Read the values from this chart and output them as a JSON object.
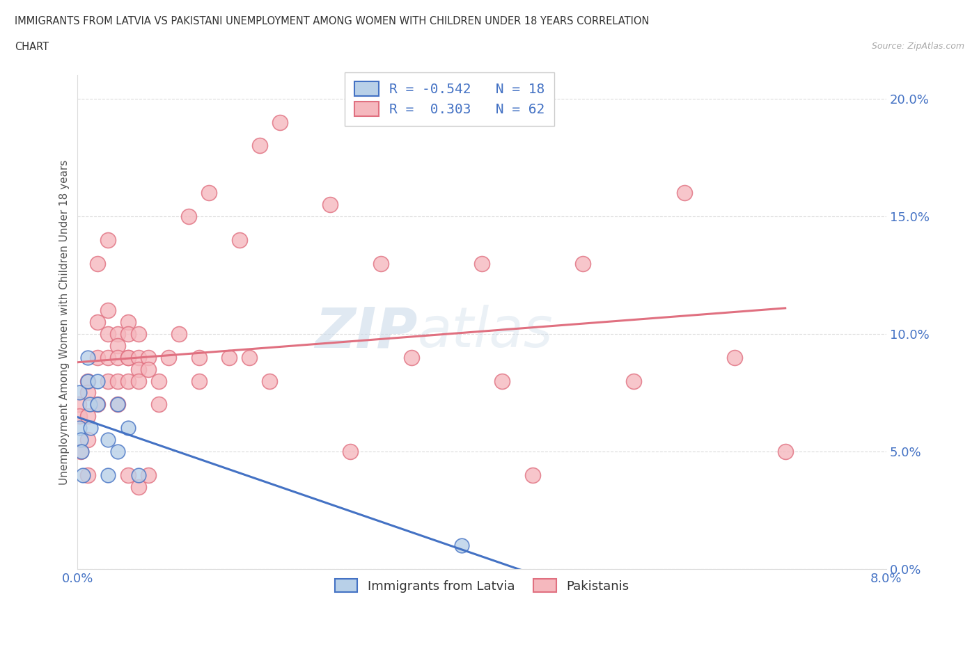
{
  "title_line1": "IMMIGRANTS FROM LATVIA VS PAKISTANI UNEMPLOYMENT AMONG WOMEN WITH CHILDREN UNDER 18 YEARS CORRELATION",
  "title_line2": "CHART",
  "source": "Source: ZipAtlas.com",
  "ylabel": "Unemployment Among Women with Children Under 18 years",
  "xlim": [
    0.0,
    0.08
  ],
  "ylim": [
    0.0,
    0.21
  ],
  "xticks": [
    0.0,
    0.01,
    0.02,
    0.03,
    0.04,
    0.05,
    0.06,
    0.07,
    0.08
  ],
  "yticks": [
    0.0,
    0.05,
    0.1,
    0.15,
    0.2
  ],
  "ytick_labels": [
    "0.0%",
    "5.0%",
    "10.0%",
    "15.0%",
    "20.0%"
  ],
  "xtick_labels": [
    "0.0%",
    "",
    "",
    "",
    "",
    "",
    "",
    "",
    "8.0%"
  ],
  "latvia_R": -0.542,
  "latvia_N": 18,
  "pakistani_R": 0.303,
  "pakistani_N": 62,
  "latvia_color": "#b8d0e8",
  "pakistani_color": "#f5b8be",
  "trend_latvia_color": "#4472c4",
  "trend_pakistani_color": "#e07080",
  "watermark_zip": "ZIP",
  "watermark_atlas": "atlas",
  "latvia_x": [
    0.0002,
    0.0002,
    0.0003,
    0.0004,
    0.0005,
    0.001,
    0.001,
    0.0012,
    0.0013,
    0.002,
    0.002,
    0.003,
    0.003,
    0.004,
    0.004,
    0.005,
    0.006,
    0.038
  ],
  "latvia_y": [
    0.075,
    0.06,
    0.055,
    0.05,
    0.04,
    0.09,
    0.08,
    0.07,
    0.06,
    0.08,
    0.07,
    0.055,
    0.04,
    0.07,
    0.05,
    0.06,
    0.04,
    0.01
  ],
  "pakistani_x": [
    0.0001,
    0.0002,
    0.0003,
    0.001,
    0.001,
    0.001,
    0.001,
    0.001,
    0.002,
    0.002,
    0.002,
    0.002,
    0.003,
    0.003,
    0.003,
    0.003,
    0.003,
    0.004,
    0.004,
    0.004,
    0.004,
    0.004,
    0.005,
    0.005,
    0.005,
    0.005,
    0.005,
    0.005,
    0.006,
    0.006,
    0.006,
    0.006,
    0.006,
    0.007,
    0.007,
    0.007,
    0.008,
    0.008,
    0.009,
    0.01,
    0.011,
    0.012,
    0.012,
    0.013,
    0.015,
    0.016,
    0.017,
    0.018,
    0.019,
    0.02,
    0.025,
    0.027,
    0.03,
    0.033,
    0.04,
    0.042,
    0.045,
    0.05,
    0.055,
    0.06,
    0.065,
    0.07
  ],
  "pakistani_y": [
    0.07,
    0.065,
    0.05,
    0.08,
    0.075,
    0.065,
    0.055,
    0.04,
    0.13,
    0.105,
    0.09,
    0.07,
    0.14,
    0.11,
    0.1,
    0.09,
    0.08,
    0.1,
    0.095,
    0.09,
    0.08,
    0.07,
    0.105,
    0.1,
    0.09,
    0.09,
    0.08,
    0.04,
    0.1,
    0.09,
    0.085,
    0.08,
    0.035,
    0.09,
    0.085,
    0.04,
    0.08,
    0.07,
    0.09,
    0.1,
    0.15,
    0.09,
    0.08,
    0.16,
    0.09,
    0.14,
    0.09,
    0.18,
    0.08,
    0.19,
    0.155,
    0.05,
    0.13,
    0.09,
    0.13,
    0.08,
    0.04,
    0.13,
    0.08,
    0.16,
    0.09,
    0.05
  ],
  "legend_top_labels": [
    "R = -0.542   N = 18",
    "R =  0.303   N = 62"
  ],
  "legend_bottom_labels": [
    "Immigrants from Latvia",
    "Pakistanis"
  ]
}
